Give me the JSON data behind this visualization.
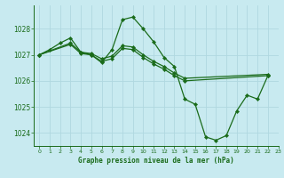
{
  "background_color": "#c8eaf0",
  "grid_color": "#b0d8e0",
  "line_color": "#1a6b1a",
  "title": "Graphe pression niveau de la mer (hPa)",
  "ylim": [
    1023.5,
    1028.9
  ],
  "xlim": [
    -0.5,
    23
  ],
  "yticks": [
    1024,
    1025,
    1026,
    1027,
    1028
  ],
  "xticks": [
    0,
    1,
    2,
    3,
    4,
    5,
    6,
    7,
    8,
    9,
    10,
    11,
    12,
    13,
    14,
    15,
    16,
    17,
    18,
    19,
    20,
    21,
    22,
    23
  ],
  "s1_x": [
    0,
    1,
    2,
    3,
    4,
    5,
    6,
    7,
    8,
    9,
    10,
    11,
    12,
    13,
    14,
    15,
    16,
    17,
    18,
    19,
    20,
    21,
    22
  ],
  "s1_y": [
    1027.0,
    1027.2,
    1027.45,
    1027.65,
    1027.1,
    1027.0,
    1026.7,
    1027.2,
    1028.35,
    1028.45,
    1028.0,
    1027.5,
    1026.9,
    1026.55,
    1025.3,
    1025.1,
    1023.85,
    1023.72,
    1023.9,
    1024.85,
    1025.45,
    1025.3,
    1026.2
  ],
  "s2_x": [
    0,
    3,
    4,
    5,
    6,
    7,
    8,
    9,
    10,
    11,
    12,
    13,
    14,
    22
  ],
  "s2_y": [
    1027.0,
    1027.45,
    1027.1,
    1027.05,
    1026.85,
    1026.95,
    1027.35,
    1027.3,
    1027.0,
    1026.75,
    1026.55,
    1026.3,
    1026.1,
    1026.25
  ],
  "s3_x": [
    0,
    3,
    4,
    5,
    6,
    7,
    8,
    9,
    10,
    11,
    12,
    13,
    14,
    22
  ],
  "s3_y": [
    1027.0,
    1027.4,
    1027.05,
    1027.0,
    1026.75,
    1026.85,
    1027.25,
    1027.2,
    1026.9,
    1026.65,
    1026.45,
    1026.2,
    1026.0,
    1026.2
  ]
}
